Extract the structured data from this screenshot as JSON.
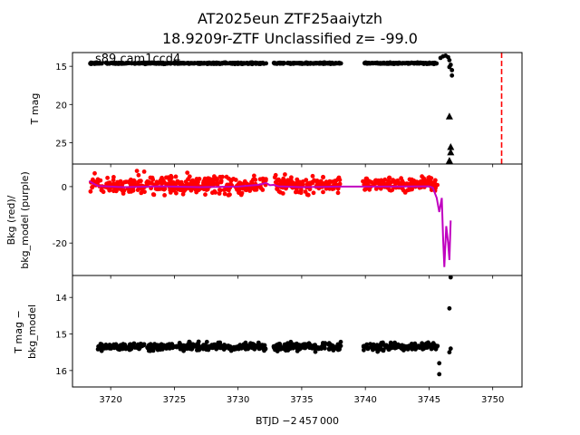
{
  "figure": {
    "title_line1": "AT2025eun  ZTF25aaiytzh",
    "title_line2": "18.9209r-ZTF Unclassified z= -99.0"
  },
  "chart_data": [
    {
      "type": "scatter",
      "panel": "top",
      "ylabel": "T mag",
      "annotation": "s89 cam1ccd4",
      "xlim": [
        3717.0,
        3752.3
      ],
      "ylim": [
        27.8,
        13.2
      ],
      "y_inverted": true,
      "yticks": [
        15,
        20,
        25
      ],
      "series": [
        {
          "marker": "circle",
          "color": "#000000",
          "segments": [
            {
              "x": [
                3718.4,
                3732.2
              ],
              "y": 14.6
            },
            {
              "x": [
                3732.8,
                3738.1
              ],
              "y": 14.6
            },
            {
              "x": [
                3739.8,
                3745.7
              ],
              "y": 14.6
            }
          ],
          "end_points": [
            {
              "x": 3745.9,
              "y": 13.9
            },
            {
              "x": 3746.1,
              "y": 13.7
            },
            {
              "x": 3746.3,
              "y": 13.6
            },
            {
              "x": 3746.5,
              "y": 13.8
            },
            {
              "x": 3746.6,
              "y": 14.2
            },
            {
              "x": 3746.7,
              "y": 14.8
            },
            {
              "x": 3746.8,
              "y": 15.5
            },
            {
              "x": 3746.8,
              "y": 16.2
            },
            {
              "x": 3746.6,
              "y": 15.1
            }
          ]
        },
        {
          "marker": "triangle",
          "color": "#000000",
          "points": [
            {
              "x": 3746.6,
              "y": 21.6
            },
            {
              "x": 3746.7,
              "y": 25.6
            },
            {
              "x": 3746.7,
              "y": 26.3
            },
            {
              "x": 3746.6,
              "y": 27.4
            },
            {
              "x": 3746.5,
              "y": 28.0
            }
          ]
        }
      ],
      "vline": {
        "x": 3750.7,
        "color": "#ff0000",
        "style": "dashed"
      }
    },
    {
      "type": "scatter",
      "panel": "middle",
      "ylabel_line1": "Bkg (red)/",
      "ylabel_line2": "bkg_model (purple)",
      "xlim": [
        3717.0,
        3752.3
      ],
      "ylim": [
        -31.5,
        8.0
      ],
      "yticks": [
        0,
        -20
      ],
      "series": [
        {
          "marker": "circle",
          "color": "#ff0000",
          "segments": [
            {
              "x": [
                3718.4,
                3732.2
              ],
              "center": 0.5,
              "spread": 7.0
            },
            {
              "x": [
                3732.8,
                3738.1
              ],
              "center": 0.5,
              "spread": 6.0
            },
            {
              "x": [
                3739.8,
                3745.7
              ],
              "center": 1.0,
              "spread": 5.5
            }
          ]
        },
        {
          "marker": "line",
          "color": "#c000c0",
          "points": [
            [
              3718.3,
              2.0
            ],
            [
              3718.6,
              1.2
            ],
            [
              3719.0,
              0.2
            ],
            [
              3721.0,
              -0.2
            ],
            [
              3724.0,
              0.1
            ],
            [
              3727.0,
              -0.2
            ],
            [
              3730.0,
              0.0
            ],
            [
              3731.6,
              0.6
            ],
            [
              3732.2,
              1.3
            ],
            [
              3732.5,
              0.5
            ],
            [
              3732.8,
              0.6
            ],
            [
              3733.2,
              0.1
            ],
            [
              3735.0,
              -0.2
            ],
            [
              3738.1,
              0.0
            ],
            [
              3739.8,
              0.0
            ],
            [
              3742.0,
              0.0
            ],
            [
              3745.0,
              0.1
            ],
            [
              3745.3,
              -0.4
            ],
            [
              3745.6,
              -4.0
            ],
            [
              3745.8,
              -9.0
            ],
            [
              3746.0,
              -4.0
            ],
            [
              3746.1,
              -18.0
            ],
            [
              3746.2,
              -28.5
            ],
            [
              3746.35,
              -14.0
            ],
            [
              3746.5,
              -20.0
            ],
            [
              3746.6,
              -26.0
            ],
            [
              3746.7,
              -12.0
            ]
          ]
        }
      ]
    },
    {
      "type": "scatter",
      "panel": "bottom",
      "ylabel_line1": "T mag −",
      "ylabel_line2": "bkg_model",
      "xlabel": "BTJD −2 457 000",
      "xlim": [
        3717.0,
        3752.3
      ],
      "ylim": [
        16.45,
        13.4
      ],
      "y_inverted": true,
      "yticks": [
        14,
        15,
        16
      ],
      "xticks": [
        3720,
        3725,
        3730,
        3735,
        3740,
        3745,
        3750
      ],
      "series": [
        {
          "marker": "circle",
          "color": "#000000",
          "segments": [
            {
              "x": [
                3719.0,
                3732.2
              ],
              "center": 15.35,
              "spread": 0.22
            },
            {
              "x": [
                3732.8,
                3738.1
              ],
              "center": 15.35,
              "spread": 0.22
            },
            {
              "x": [
                3739.8,
                3745.7
              ],
              "center": 15.35,
              "spread": 0.22
            }
          ],
          "end_points": [
            {
              "x": 3746.7,
              "y": 13.45
            },
            {
              "x": 3746.6,
              "y": 14.3
            },
            {
              "x": 3746.7,
              "y": 15.4
            },
            {
              "x": 3746.6,
              "y": 15.5
            },
            {
              "x": 3745.8,
              "y": 15.8
            },
            {
              "x": 3745.8,
              "y": 16.1
            }
          ]
        }
      ]
    }
  ]
}
